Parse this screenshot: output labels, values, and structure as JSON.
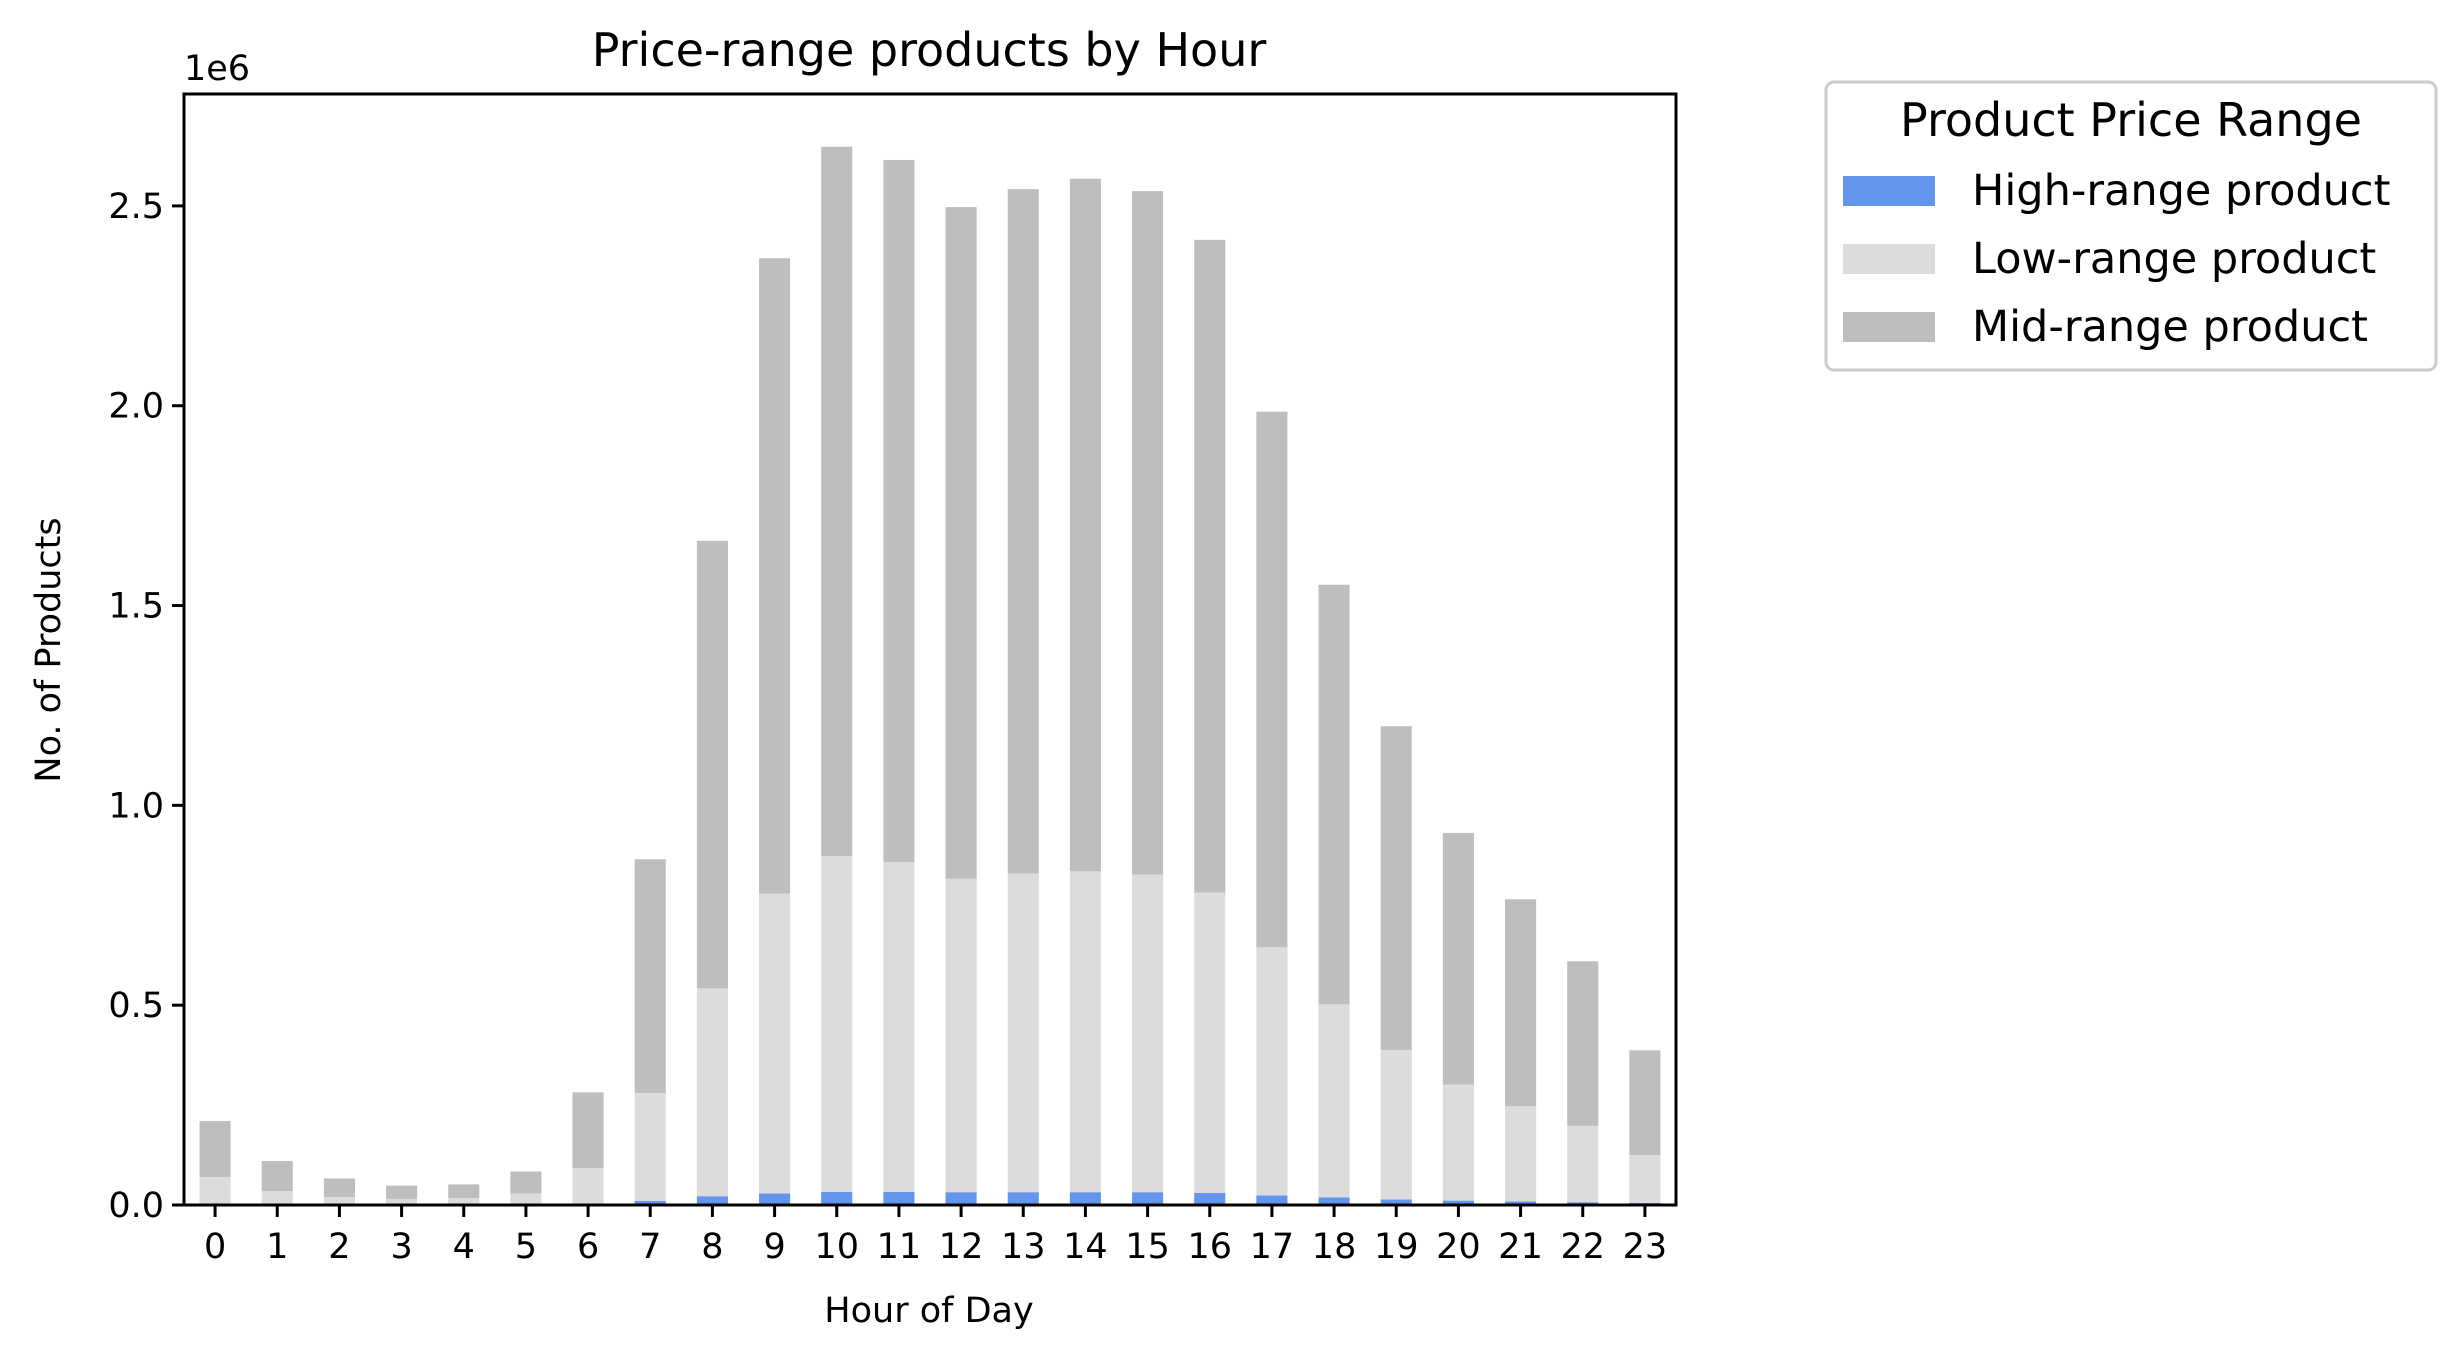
{
  "chart_data": {
    "type": "bar",
    "stacked": true,
    "title": "Price-range products by Hour",
    "xlabel": "Hour of Day",
    "ylabel": "No. of Products",
    "y_offset_label": "1e6",
    "ylim": [
      0,
      2780000
    ],
    "yticks": [
      0,
      500000,
      1000000,
      1500000,
      2000000,
      2500000
    ],
    "ytick_labels": [
      "0.0",
      "0.5",
      "1.0",
      "1.5",
      "2.0",
      "2.5"
    ],
    "categories": [
      "0",
      "1",
      "2",
      "3",
      "4",
      "5",
      "6",
      "7",
      "8",
      "9",
      "10",
      "11",
      "12",
      "13",
      "14",
      "15",
      "16",
      "17",
      "18",
      "19",
      "20",
      "21",
      "22",
      "23"
    ],
    "series": [
      {
        "name": "High-range product",
        "color": "#6495ed",
        "values": [
          2000,
          1000,
          500,
          400,
          500,
          800,
          2000,
          10000,
          22000,
          29000,
          33000,
          33000,
          32000,
          32000,
          32000,
          32000,
          30000,
          24000,
          19000,
          14000,
          11000,
          9000,
          7000,
          5000
        ]
      },
      {
        "name": "Low-range product",
        "color": "#dcdcdc",
        "values": [
          68000,
          34000,
          19000,
          15000,
          17000,
          28000,
          90000,
          270000,
          520000,
          750000,
          840000,
          825000,
          785000,
          797000,
          803000,
          795000,
          752000,
          621000,
          483000,
          374000,
          290000,
          238000,
          191000,
          120000
        ]
      },
      {
        "name": "Mid-range product",
        "color": "#bebebe",
        "values": [
          140000,
          75000,
          47000,
          33000,
          34000,
          55000,
          190000,
          585000,
          1120000,
          1590000,
          1775000,
          1757000,
          1680000,
          1713000,
          1733000,
          1710000,
          1633000,
          1340000,
          1050000,
          810000,
          630000,
          518000,
          412000,
          262000
        ]
      }
    ],
    "legend": {
      "title": "Product Price Range",
      "placement": "outside-top-right"
    },
    "grid": false
  }
}
